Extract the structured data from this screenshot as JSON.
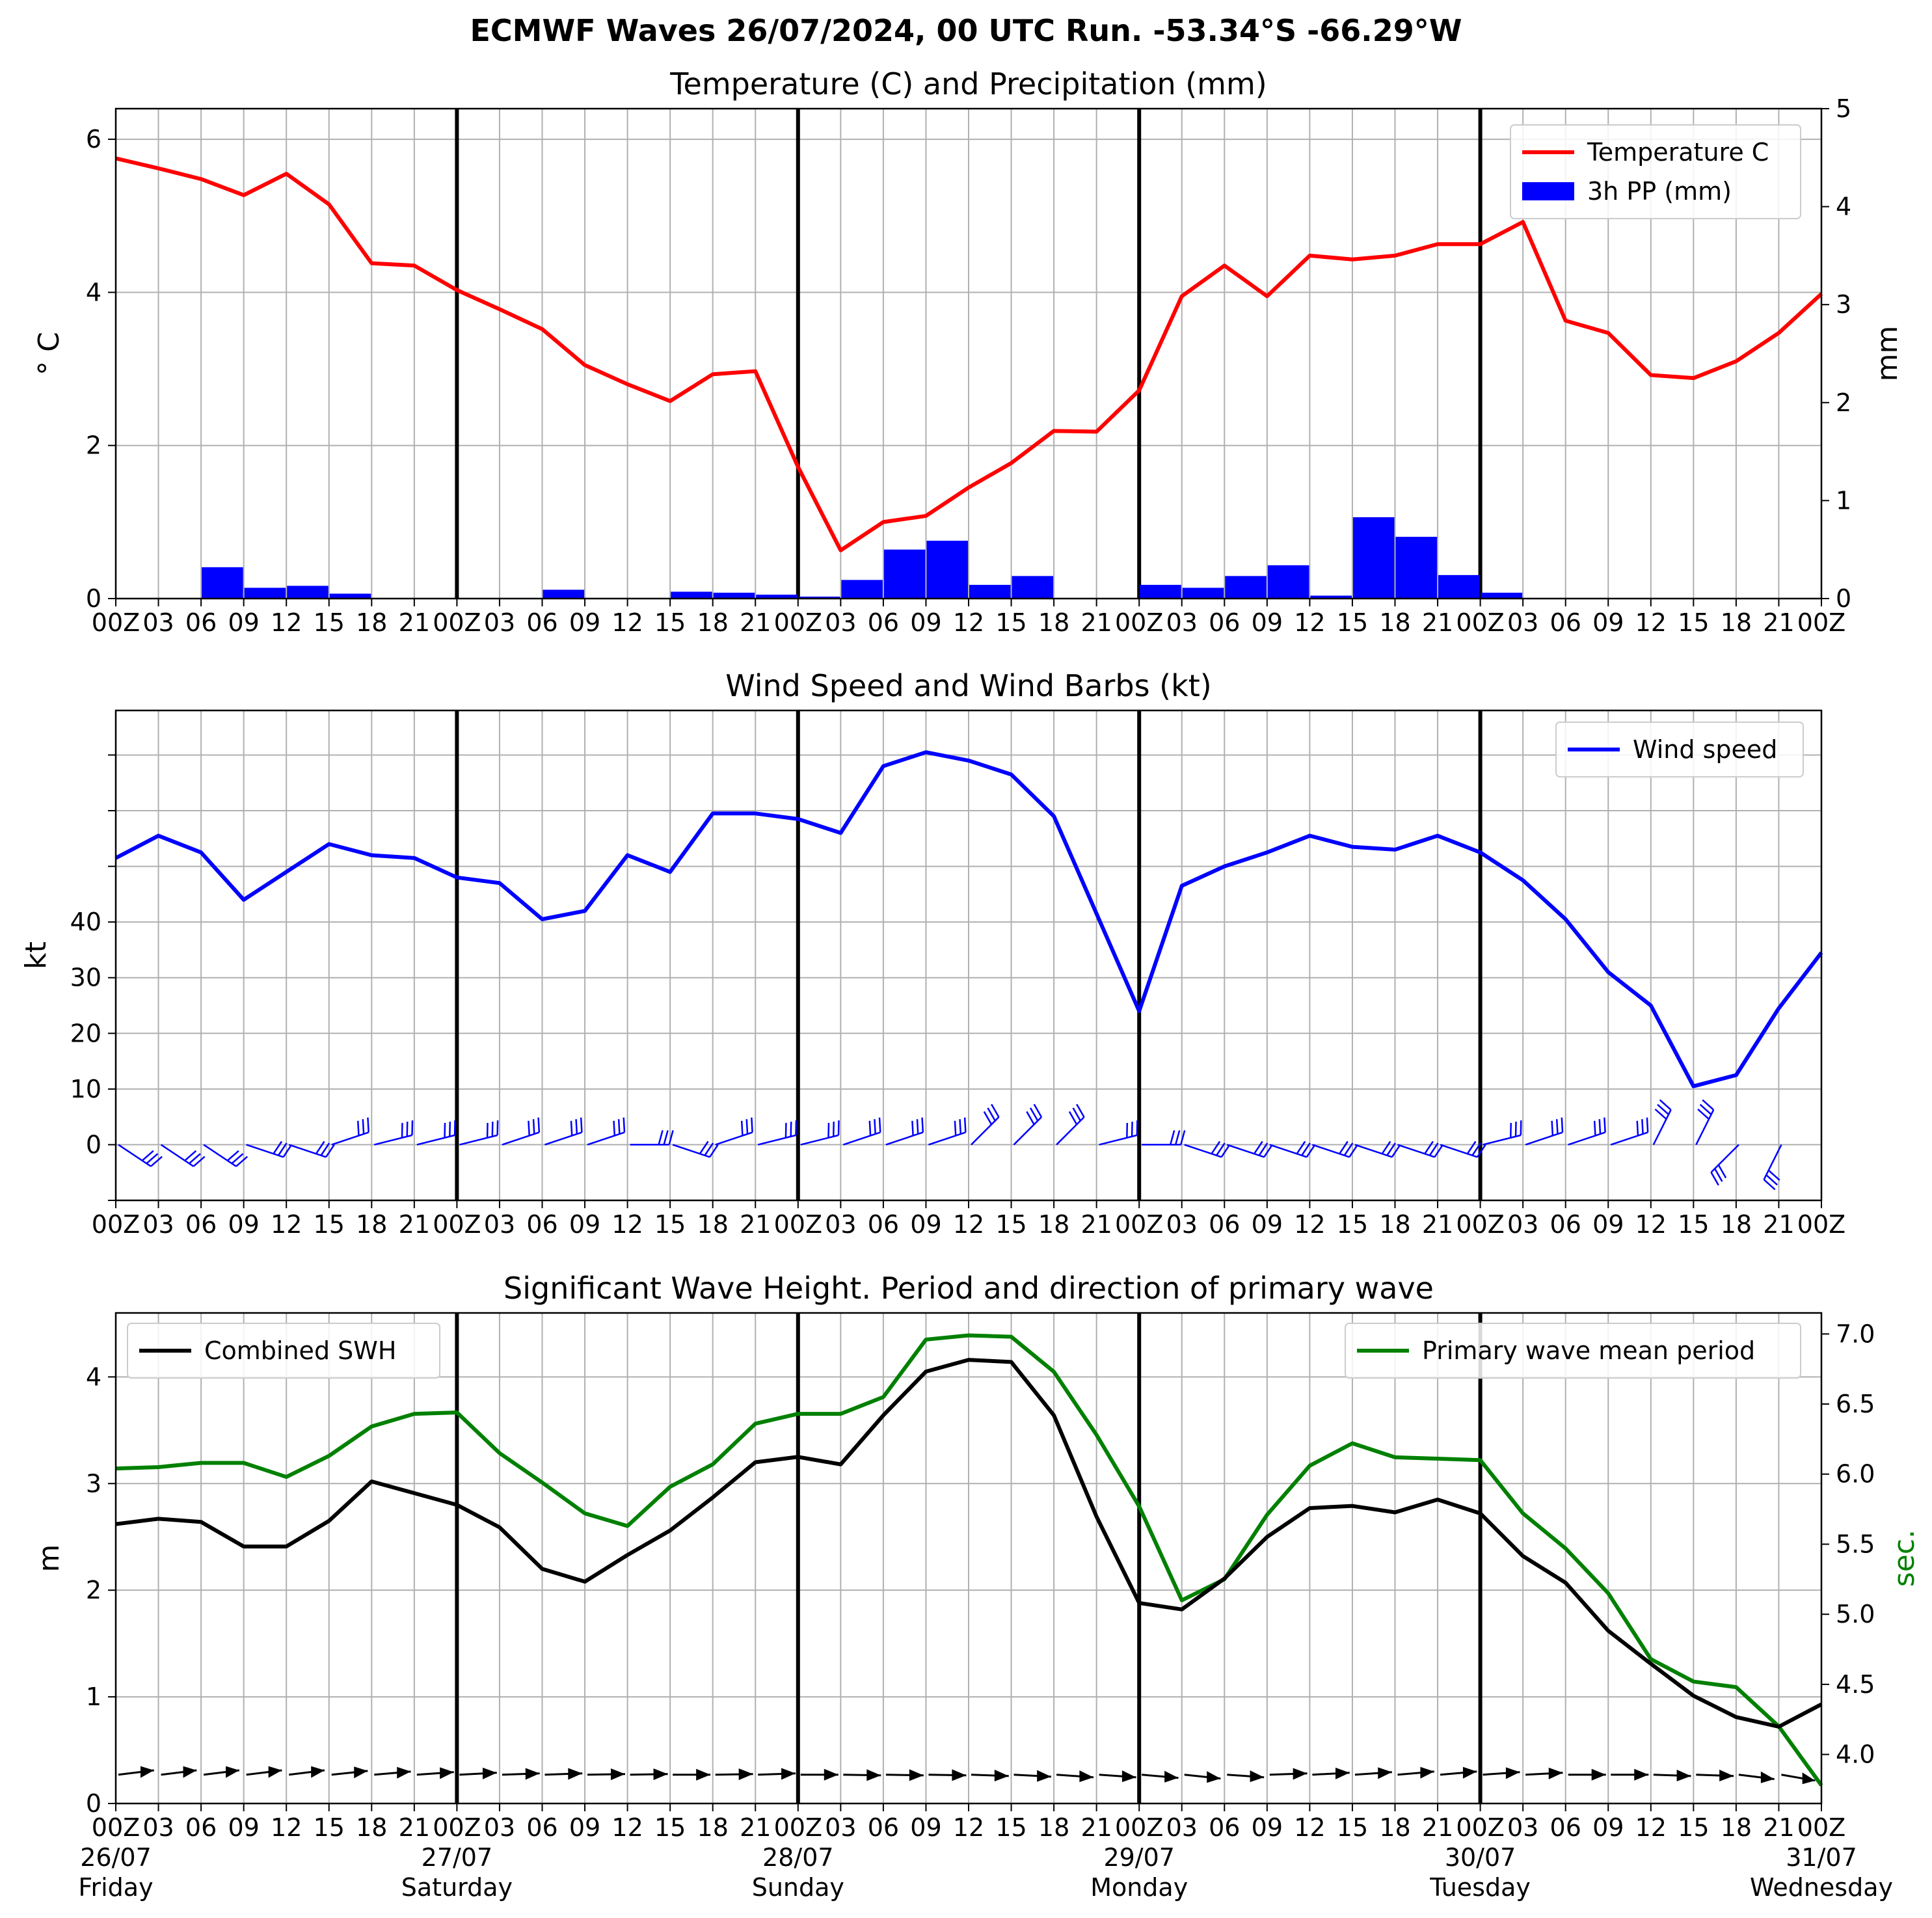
{
  "figure": {
    "suptitle": "ECMWF Waves 26/07/2024, 00 UTC Run. -53.34°S -66.29°W"
  },
  "x_axis": {
    "step_hours": 3,
    "tick_labels_top": [
      "00Z",
      "03",
      "06",
      "09",
      "12",
      "15",
      "18",
      "21",
      "00Z",
      "03",
      "06",
      "09",
      "12",
      "15",
      "18",
      "21",
      "00Z",
      "03",
      "06",
      "09",
      "12",
      "15",
      "18",
      "21",
      "00Z",
      "03",
      "06",
      "09",
      "12",
      "15",
      "18",
      "21",
      "00Z",
      "03",
      "06",
      "09",
      "12",
      "15",
      "18",
      "21",
      "00Z"
    ],
    "day_boundaries_index": [
      8,
      16,
      24,
      32
    ],
    "dates": [
      {
        "index": 0,
        "date": "26/07",
        "day": "Friday"
      },
      {
        "index": 8,
        "date": "27/07",
        "day": "Saturday"
      },
      {
        "index": 16,
        "date": "28/07",
        "day": "Sunday"
      },
      {
        "index": 24,
        "date": "29/07",
        "day": "Monday"
      },
      {
        "index": 32,
        "date": "30/07",
        "day": "Tuesday"
      },
      {
        "index": 40,
        "date": "31/07",
        "day": "Wednesday"
      }
    ]
  },
  "colors": {
    "temperature": "#ff0000",
    "precip": "#0000ff",
    "wind": "#0000ff",
    "swh": "#000000",
    "period": "#008000",
    "grid": "#b0b0b0",
    "day_line": "#000000"
  },
  "chart_data": [
    {
      "type": "line",
      "title": "Temperature (C) and Precipitation (mm)",
      "ylabel": "° C",
      "ylabel_right": "mm",
      "ylim": [
        0,
        6.4
      ],
      "ylim_right": [
        0,
        5
      ],
      "yticks": [
        0,
        2,
        4,
        6
      ],
      "yticks_right": [
        0,
        1,
        2,
        3,
        4,
        5
      ],
      "legend_loc": "upper right",
      "series": [
        {
          "name": "Temperature C",
          "axis": "left",
          "values": [
            5.75,
            5.62,
            5.48,
            5.27,
            5.55,
            5.15,
            4.38,
            4.35,
            4.03,
            3.78,
            3.52,
            3.05,
            2.8,
            2.58,
            2.93,
            2.97,
            1.72,
            0.63,
            1.0,
            1.08,
            1.45,
            1.77,
            2.19,
            2.18,
            2.72,
            3.95,
            4.35,
            3.95,
            4.48,
            4.43,
            4.48,
            4.63,
            4.63,
            4.92,
            3.63,
            3.47,
            2.92,
            2.88,
            3.1,
            3.47,
            3.98
          ]
        },
        {
          "name": "3h PP (mm)",
          "axis": "right",
          "type": "bar",
          "values": [
            0,
            0,
            0.32,
            0.11,
            0.13,
            0.05,
            0,
            0,
            0,
            0,
            0.09,
            0,
            0,
            0.07,
            0.06,
            0.04,
            0.02,
            0.19,
            0.5,
            0.59,
            0.14,
            0.23,
            0,
            0,
            0.14,
            0.11,
            0.23,
            0.34,
            0.03,
            0.83,
            0.63,
            0.24,
            0.06,
            0,
            0,
            0,
            0,
            0,
            0,
            0
          ]
        }
      ]
    },
    {
      "type": "line",
      "title": "Wind Speed and Wind Barbs (kt)",
      "ylabel": "kt",
      "ylim": [
        -10,
        78
      ],
      "yticks_labeled": [
        0,
        10,
        20,
        30,
        40
      ],
      "yticks_unlabeled": [
        50,
        60,
        70
      ],
      "legend_loc": "upper right",
      "series": [
        {
          "name": "Wind speed",
          "values": [
            51.5,
            55.5,
            52.5,
            44,
            49,
            54,
            52,
            51.5,
            48,
            47,
            40.5,
            42,
            52,
            49,
            59.5,
            59.5,
            58.5,
            56,
            68,
            70.5,
            69,
            66.5,
            59,
            41.5,
            24,
            46.5,
            50,
            52.5,
            55.5,
            53.5,
            53,
            55.5,
            52.5,
            47.5,
            40.5,
            31,
            25,
            10.5,
            12.5,
            24.5,
            34.5
          ]
        }
      ],
      "barbs": {
        "u": [
          -3,
          -3,
          -3,
          -3,
          -3,
          -3,
          -4,
          -4,
          -4,
          -3,
          -3,
          -3,
          -2,
          -3,
          -3,
          -4,
          -4,
          -3,
          -3,
          -3,
          -2,
          -2,
          -2,
          -4,
          -4,
          -3,
          -3,
          -3,
          -3,
          -3,
          -3,
          -3,
          -4,
          -3,
          -3,
          -3,
          -1,
          -1,
          1,
          1
        ],
        "v": [
          2,
          2,
          2,
          1,
          1,
          -1,
          -1,
          -1,
          -1,
          -1,
          -1,
          -1,
          0,
          1,
          -1,
          -1,
          -1,
          -1,
          -1,
          -1,
          -2,
          -2,
          -2,
          -1,
          0,
          1,
          1,
          1,
          1,
          1,
          1,
          1,
          -1,
          -1,
          -1,
          -1,
          -2,
          -2,
          1,
          2
        ],
        "description": "wind barbs drawn at 3-hourly points along y=0"
      }
    },
    {
      "type": "line",
      "title": "Significant Wave Height. Period and direction of primary wave",
      "ylabel": "m",
      "ylabel_right": "sec.",
      "ylim": [
        0,
        4.6
      ],
      "ylim_right": [
        3.65,
        7.15
      ],
      "yticks": [
        0,
        1,
        2,
        3,
        4
      ],
      "yticks_right": [
        4.0,
        4.5,
        5.0,
        5.5,
        6.0,
        6.5,
        7.0
      ],
      "series": [
        {
          "name": "Combined SWH",
          "axis": "left",
          "legend_loc": "upper left",
          "values": [
            2.62,
            2.67,
            2.64,
            2.41,
            2.41,
            2.65,
            3.02,
            2.91,
            2.8,
            2.59,
            2.2,
            2.08,
            2.33,
            2.56,
            2.87,
            3.2,
            3.25,
            3.18,
            3.64,
            4.05,
            4.16,
            4.14,
            3.64,
            2.69,
            1.88,
            1.82,
            2.11,
            2.5,
            2.77,
            2.79,
            2.73,
            2.85,
            2.72,
            2.32,
            2.07,
            1.62,
            1.31,
            1.01,
            0.81,
            0.72,
            0.93
          ]
        },
        {
          "name": "Primary wave mean period",
          "axis": "right",
          "legend_loc": "upper right",
          "values": [
            6.04,
            6.05,
            6.08,
            6.08,
            5.98,
            6.13,
            6.34,
            6.43,
            6.44,
            6.15,
            5.94,
            5.72,
            5.63,
            5.91,
            6.07,
            6.36,
            6.43,
            6.43,
            6.55,
            6.96,
            6.99,
            6.98,
            6.73,
            6.28,
            5.77,
            5.1,
            5.25,
            5.71,
            6.06,
            6.22,
            6.12,
            6.11,
            6.1,
            5.72,
            5.47,
            5.15,
            4.68,
            4.52,
            4.48,
            4.2,
            3.78
          ]
        }
      ],
      "arrows": {
        "dx": [
          1,
          1,
          1,
          1,
          1,
          1,
          1,
          1,
          1,
          1,
          1,
          1,
          1,
          1,
          1,
          1,
          1,
          1,
          1,
          1,
          1,
          1,
          1,
          1,
          1,
          1,
          1,
          1,
          1,
          1,
          1,
          1,
          1,
          1,
          1,
          1,
          1,
          1,
          1,
          1
        ],
        "dy": [
          -0.35,
          -0.35,
          -0.35,
          -0.35,
          -0.35,
          -0.3,
          -0.25,
          -0.2,
          -0.15,
          -0.1,
          -0.1,
          -0.05,
          -0.05,
          0,
          -0.05,
          -0.1,
          0,
          0.05,
          0.05,
          0.05,
          0.1,
          0.15,
          0.2,
          0.2,
          0.25,
          0.3,
          0.2,
          -0.1,
          -0.15,
          -0.2,
          -0.25,
          -0.25,
          -0.2,
          -0.15,
          0,
          0,
          0.1,
          0.1,
          0.35,
          0.5
        ],
        "description": "primary wave direction arrows drawn along the bottom"
      }
    }
  ]
}
